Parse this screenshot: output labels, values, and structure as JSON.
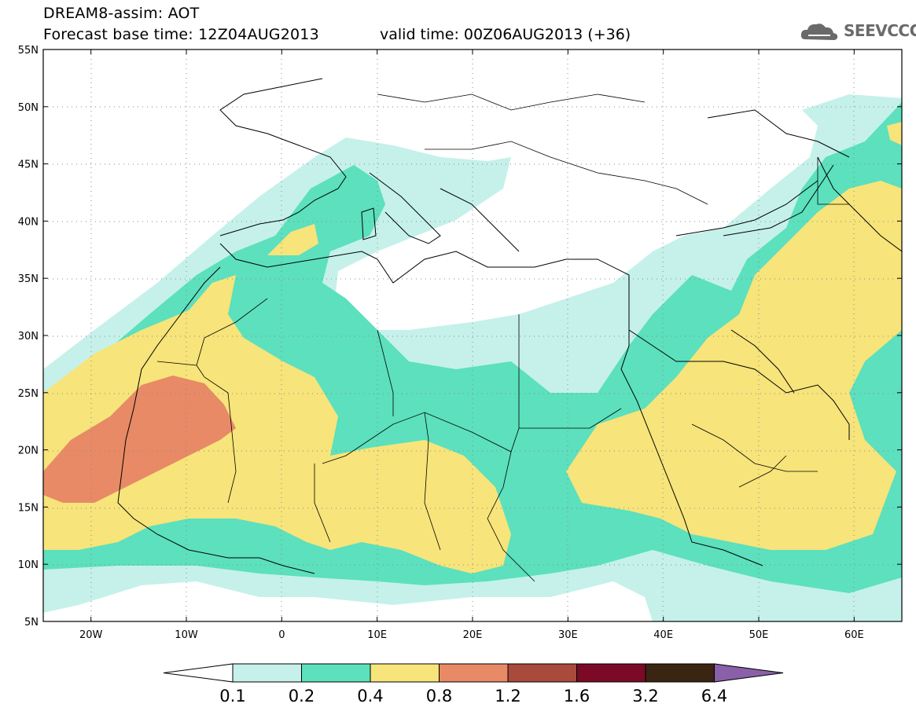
{
  "header": {
    "line1": "DREAM8-assim: AOT",
    "line2_left": "Forecast base time: 12Z04AUG2013",
    "line2_right": "valid time: 00Z06AUG2013 (+36)",
    "logo_text": "SEEVCCC"
  },
  "map": {
    "lat_labels": [
      "55N",
      "50N",
      "45N",
      "40N",
      "35N",
      "30N",
      "25N",
      "20N",
      "15N",
      "10N",
      "5N"
    ],
    "lon_labels": [
      "20W",
      "10W",
      "0",
      "10E",
      "20E",
      "30E",
      "40E",
      "50E",
      "60E"
    ],
    "lat_range": [
      5,
      55
    ],
    "lon_range": [
      -25,
      65
    ]
  },
  "legend": {
    "labels": [
      "0.1",
      "0.2",
      "0.4",
      "0.8",
      "1.2",
      "1.6",
      "3.2",
      "6.4"
    ],
    "colors": [
      "#ffffff",
      "#c5f1ea",
      "#5ce0bd",
      "#f7e47a",
      "#e88a66",
      "#a84a3c",
      "#7a0a26",
      "#3a2412",
      "#8a60a8"
    ]
  }
}
